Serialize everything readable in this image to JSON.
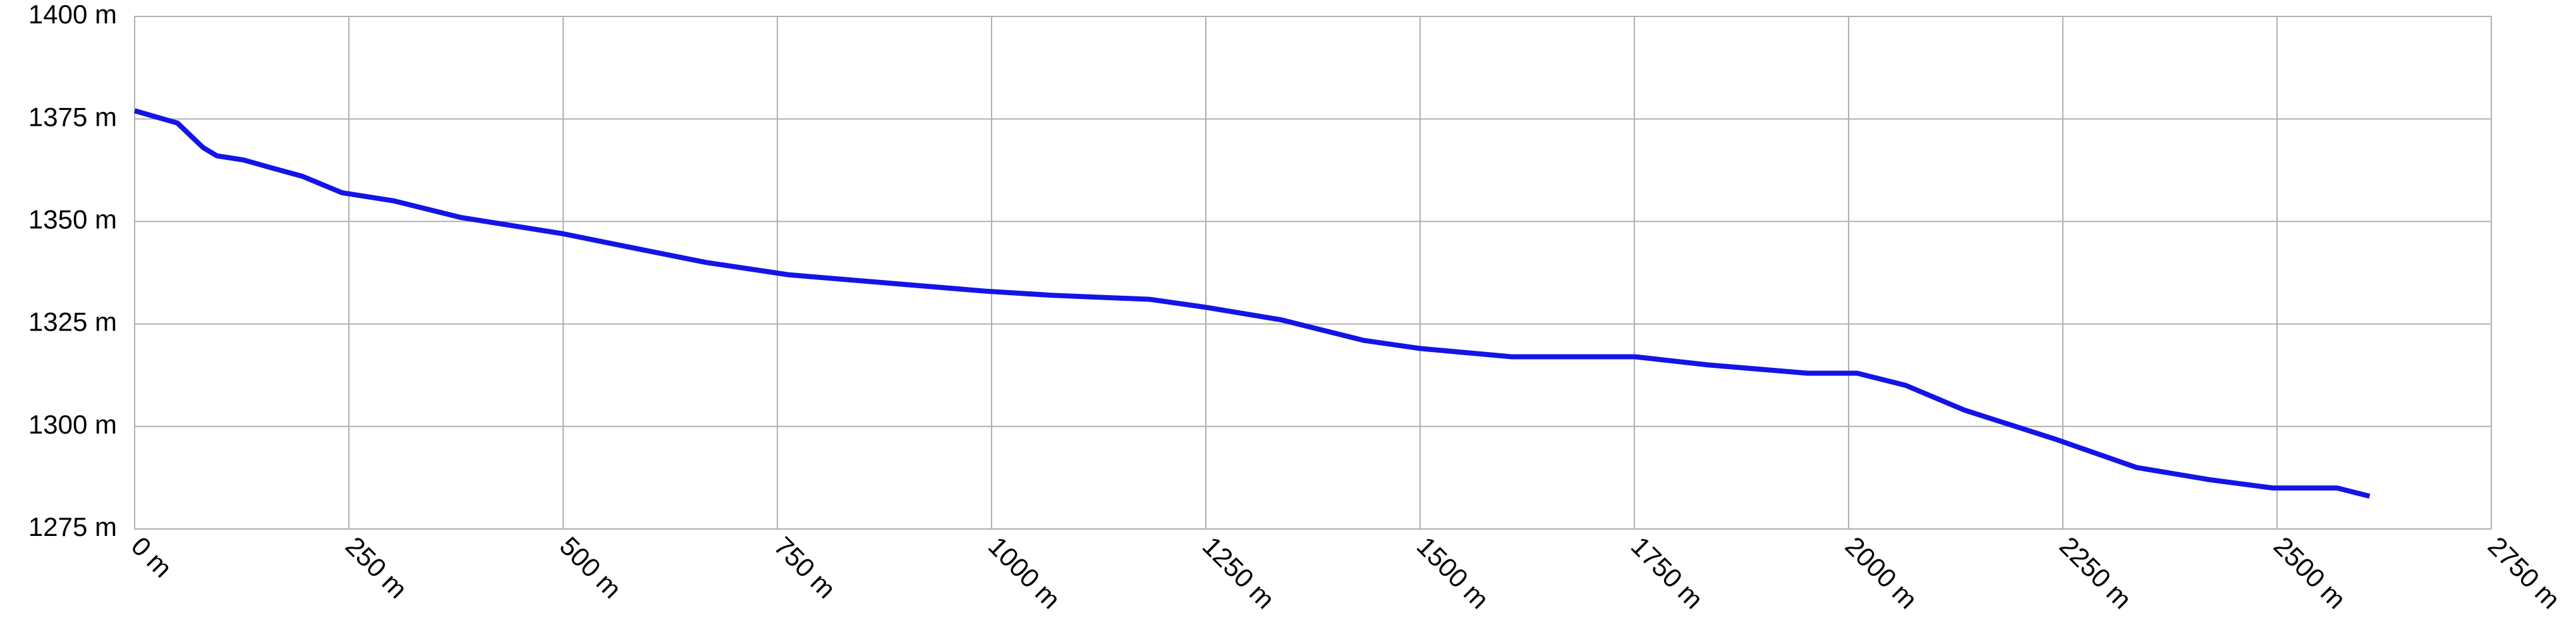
{
  "chart_data": {
    "type": "line",
    "x": [
      0,
      50,
      80,
      96,
      127,
      161,
      196,
      242,
      303,
      380,
      500,
      571,
      667,
      763,
      878,
      993,
      1070,
      1185,
      1252,
      1338,
      1434,
      1501,
      1607,
      1751,
      1837,
      1952,
      2010,
      2067,
      2135,
      2240,
      2336,
      2422,
      2495,
      2547,
      2570,
      2608
    ],
    "series": [
      {
        "color": "#1414e6",
        "values": [
          1377,
          1374,
          1368,
          1366,
          1365,
          1363,
          1361,
          1357,
          1355,
          1351,
          1347,
          1344,
          1340,
          1337,
          1335,
          1333,
          1332,
          1331,
          1329,
          1326,
          1321,
          1319,
          1317,
          1317,
          1315,
          1313,
          1313,
          1310,
          1304,
          1297,
          1290,
          1287,
          1285,
          1285,
          1285,
          1283
        ]
      }
    ],
    "xlim": [
      0,
      2750
    ],
    "xticks": [
      {
        "value": 0,
        "label": "0 m"
      },
      {
        "value": 250,
        "label": "250 m"
      },
      {
        "value": 500,
        "label": "500 m"
      },
      {
        "value": 750,
        "label": "750 m"
      },
      {
        "value": 1000,
        "label": "1000 m"
      },
      {
        "value": 1250,
        "label": "1250 m"
      },
      {
        "value": 1500,
        "label": "1500 m"
      },
      {
        "value": 1750,
        "label": "1750 m"
      },
      {
        "value": 2000,
        "label": "2000 m"
      },
      {
        "value": 2250,
        "label": "2250 m"
      },
      {
        "value": 2500,
        "label": "2500 m"
      },
      {
        "value": 2750,
        "label": "2750 m"
      }
    ],
    "ylim": [
      1275,
      1400
    ],
    "yticks": [
      {
        "value": 1275,
        "label": "1275 m"
      },
      {
        "value": 1300,
        "label": "1300 m"
      },
      {
        "value": 1325,
        "label": "1325 m"
      },
      {
        "value": 1350,
        "label": "1350 m"
      },
      {
        "value": 1375,
        "label": "1375 m"
      },
      {
        "value": 1400,
        "label": "1400 m"
      }
    ],
    "grid": true
  }
}
